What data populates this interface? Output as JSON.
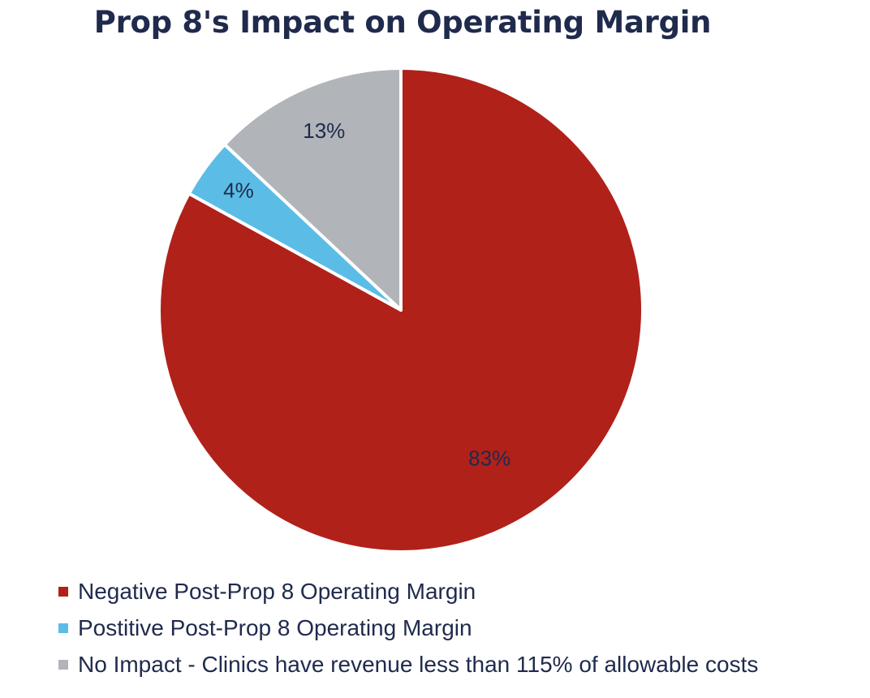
{
  "chart_data": {
    "type": "pie",
    "title": "Prop 8's Impact on Operating Margin",
    "legend_position": "bottom",
    "slices": [
      {
        "label": "Negative Post-Prop 8 Operating Margin",
        "value": 83,
        "value_label": "83%",
        "color": "#b0211a"
      },
      {
        "label": "Postitive Post-Prop 8 Operating Margin",
        "value": 4,
        "value_label": "4%",
        "color": "#5bbde6"
      },
      {
        "label": "No Impact - Clinics have revenue less than 115% of allowable costs",
        "value": 13,
        "value_label": "13%",
        "color": "#b1b4b8"
      }
    ]
  }
}
